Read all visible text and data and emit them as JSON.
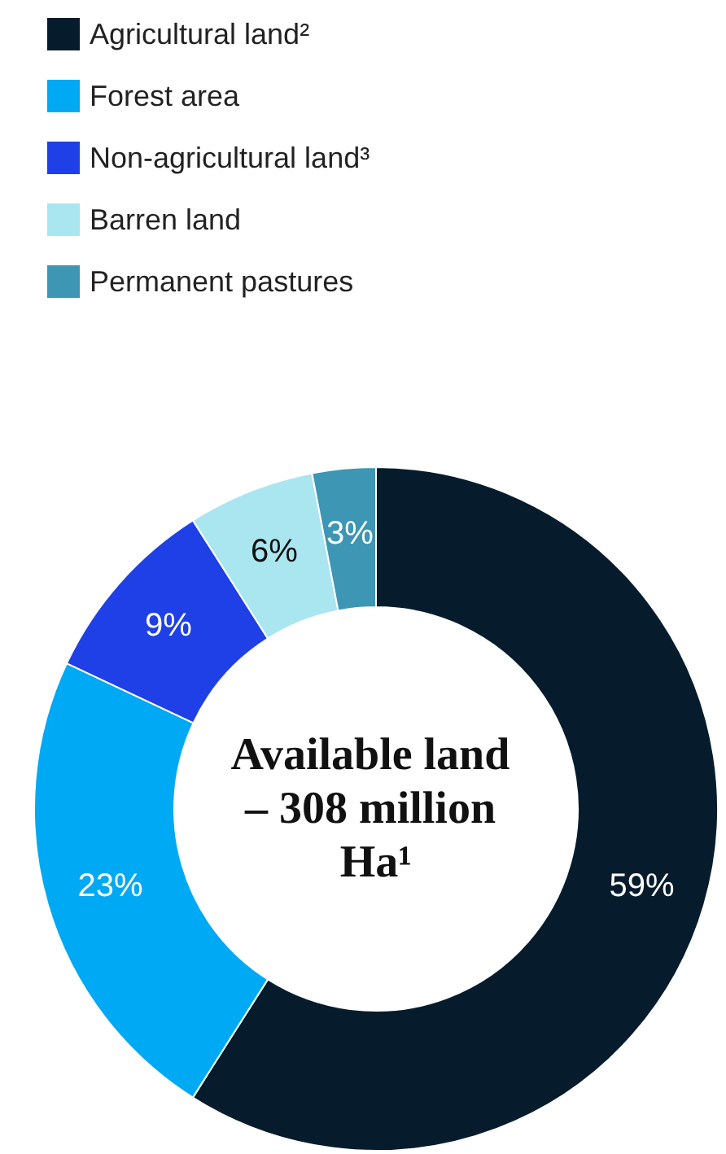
{
  "chart_data": {
    "type": "donut",
    "title": "Available land – 308 million Ha¹",
    "categories": [
      "Agricultural land²",
      "Forest area",
      "Non-agricultural land³",
      "Barren land",
      "Permanent pastures"
    ],
    "values": [
      59,
      23,
      9,
      6,
      3
    ],
    "colors": [
      "#061c2c",
      "#00a9f4",
      "#1f40e6",
      "#aae6f0",
      "#3c96b4"
    ],
    "value_labels": [
      "59%",
      "23%",
      "9%",
      "6%",
      "3%"
    ],
    "legend": "top left"
  }
}
